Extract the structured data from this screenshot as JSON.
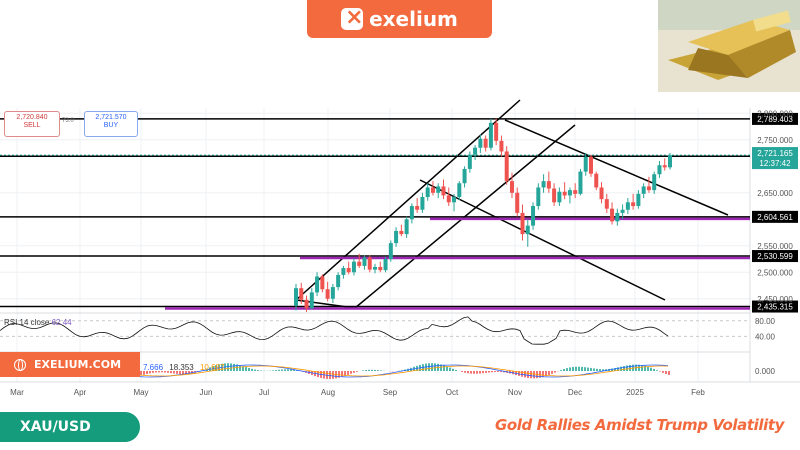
{
  "brand": {
    "name": "exelium",
    "website": "EXELIUM.COM"
  },
  "quote": {
    "sell_price": "2,720.840",
    "sell_label": "SELL",
    "spread": "73.0",
    "buy_price": "2,721.570",
    "buy_label": "BUY"
  },
  "symbol": "XAU/USD",
  "headline": "Gold Rallies Amidst Trump Volatility",
  "colors": {
    "brand_orange": "#f26a3d",
    "teal": "#149c7c",
    "up": "#26a69a",
    "down": "#ef5350",
    "channel_purple": "#9c27b0"
  },
  "chart_data": {
    "type": "candlestick",
    "instrument": "XAU/USD",
    "x_ticks": [
      "Mar",
      "Apr",
      "May",
      "Jun",
      "Jul",
      "Aug",
      "Sep",
      "Oct",
      "Nov",
      "Dec",
      "2025",
      "Feb"
    ],
    "y_ticks": [
      "2,800.000",
      "2,750.000",
      "2,650.000",
      "2,550.000",
      "2,500.000",
      "2,450.000"
    ],
    "ylim": [
      2425,
      2810
    ],
    "current_price": {
      "value": "2,721.165",
      "countdown": "12:37:42"
    },
    "levels": [
      {
        "value": 2789.403,
        "label": "2,789.403",
        "style": "black"
      },
      {
        "value": 2718.888,
        "label": "2,718.888",
        "style": "black"
      },
      {
        "value": 2604.561,
        "label": "2,604.561",
        "style": "black-purple"
      },
      {
        "value": 2530.599,
        "label": "2,530.599",
        "style": "black-purple"
      },
      {
        "value": 2435.315,
        "label": "2,435.315",
        "style": "black-purple"
      }
    ],
    "candles": [
      [
        "Jul",
        2437,
        2478,
        2428,
        2470
      ],
      [
        "Jul",
        2470,
        2480,
        2440,
        2448
      ],
      [
        "Jul",
        2448,
        2456,
        2425,
        2432
      ],
      [
        "Jul",
        2432,
        2470,
        2430,
        2462
      ],
      [
        "Jul",
        2462,
        2500,
        2455,
        2492
      ],
      [
        "Aug",
        2492,
        2496,
        2462,
        2468
      ],
      [
        "Aug",
        2468,
        2482,
        2445,
        2450
      ],
      [
        "Aug",
        2450,
        2478,
        2442,
        2472
      ],
      [
        "Aug",
        2472,
        2500,
        2466,
        2495
      ],
      [
        "Aug",
        2495,
        2512,
        2488,
        2508
      ],
      [
        "Aug",
        2508,
        2520,
        2496,
        2500
      ],
      [
        "Aug",
        2500,
        2526,
        2494,
        2520
      ],
      [
        "Aug",
        2520,
        2535,
        2508,
        2512
      ],
      [
        "Aug",
        2512,
        2532,
        2505,
        2528
      ],
      [
        "Aug",
        2528,
        2532,
        2500,
        2505
      ],
      [
        "Sep",
        2505,
        2516,
        2498,
        2510
      ],
      [
        "Sep",
        2510,
        2520,
        2500,
        2504
      ],
      [
        "Sep",
        2504,
        2530,
        2500,
        2525
      ],
      [
        "Sep",
        2525,
        2560,
        2520,
        2555
      ],
      [
        "Sep",
        2555,
        2585,
        2548,
        2578
      ],
      [
        "Sep",
        2578,
        2590,
        2568,
        2572
      ],
      [
        "Sep",
        2572,
        2605,
        2565,
        2600
      ],
      [
        "Sep",
        2600,
        2630,
        2592,
        2625
      ],
      [
        "Sep",
        2625,
        2640,
        2612,
        2618
      ],
      [
        "Sep",
        2618,
        2650,
        2612,
        2642
      ],
      [
        "Oct",
        2642,
        2668,
        2635,
        2660
      ],
      [
        "Oct",
        2660,
        2672,
        2645,
        2650
      ],
      [
        "Oct",
        2650,
        2668,
        2640,
        2662
      ],
      [
        "Oct",
        2662,
        2675,
        2638,
        2645
      ],
      [
        "Oct",
        2645,
        2660,
        2625,
        2632
      ],
      [
        "Oct",
        2632,
        2648,
        2615,
        2642
      ],
      [
        "Oct",
        2642,
        2672,
        2636,
        2668
      ],
      [
        "Oct",
        2668,
        2700,
        2660,
        2695
      ],
      [
        "Oct",
        2695,
        2728,
        2688,
        2722
      ],
      [
        "Oct",
        2722,
        2740,
        2712,
        2735
      ],
      [
        "Oct",
        2735,
        2760,
        2725,
        2752
      ],
      [
        "Oct",
        2752,
        2758,
        2728,
        2735
      ],
      [
        "Nov",
        2735,
        2790,
        2730,
        2782
      ],
      [
        "Nov",
        2782,
        2790,
        2740,
        2748
      ],
      [
        "Nov",
        2748,
        2758,
        2718,
        2728
      ],
      [
        "Nov",
        2728,
        2738,
        2665,
        2672
      ],
      [
        "Nov",
        2672,
        2688,
        2640,
        2650
      ],
      [
        "Nov",
        2650,
        2660,
        2605,
        2612
      ],
      [
        "Nov",
        2612,
        2628,
        2560,
        2572
      ],
      [
        "Nov",
        2572,
        2600,
        2548,
        2588
      ],
      [
        "Nov",
        2588,
        2632,
        2580,
        2625
      ],
      [
        "Nov",
        2625,
        2668,
        2618,
        2660
      ],
      [
        "Nov",
        2660,
        2685,
        2650,
        2672
      ],
      [
        "Nov",
        2672,
        2690,
        2650,
        2658
      ],
      [
        "Dec",
        2658,
        2668,
        2625,
        2632
      ],
      [
        "Dec",
        2632,
        2660,
        2625,
        2652
      ],
      [
        "Dec",
        2652,
        2670,
        2638,
        2645
      ],
      [
        "Dec",
        2645,
        2660,
        2630,
        2655
      ],
      [
        "Dec",
        2655,
        2668,
        2640,
        2648
      ],
      [
        "Dec",
        2648,
        2695,
        2645,
        2690
      ],
      [
        "Dec",
        2690,
        2725,
        2682,
        2718
      ],
      [
        "Dec",
        2718,
        2722,
        2680,
        2686
      ],
      [
        "Dec",
        2686,
        2690,
        2655,
        2660
      ],
      [
        "Dec",
        2660,
        2670,
        2630,
        2638
      ],
      [
        "Dec",
        2638,
        2648,
        2612,
        2620
      ],
      [
        "Dec",
        2620,
        2632,
        2590,
        2596
      ],
      [
        "Dec",
        2596,
        2620,
        2588,
        2612
      ],
      [
        "Dec",
        2612,
        2628,
        2600,
        2618
      ],
      [
        "2025",
        2618,
        2640,
        2610,
        2632
      ],
      [
        "2025",
        2632,
        2648,
        2618,
        2625
      ],
      [
        "2025",
        2625,
        2655,
        2620,
        2648
      ],
      [
        "2025",
        2648,
        2668,
        2640,
        2662
      ],
      [
        "2025",
        2662,
        2680,
        2650,
        2655
      ],
      [
        "2025",
        2655,
        2690,
        2648,
        2685
      ],
      [
        "2025",
        2685,
        2710,
        2678,
        2702
      ],
      [
        "2025",
        2702,
        2715,
        2692,
        2698
      ],
      [
        "2025",
        2698,
        2725,
        2694,
        2721
      ]
    ],
    "indicators": {
      "rsi": {
        "label": "RSI 14 close",
        "value": "62.44",
        "levels": [
          "80.00",
          "40.00"
        ]
      },
      "macd": {
        "values": [
          "7.666",
          "18.353",
          "10.687"
        ],
        "zero_label": "0.000"
      }
    },
    "grid": true
  }
}
